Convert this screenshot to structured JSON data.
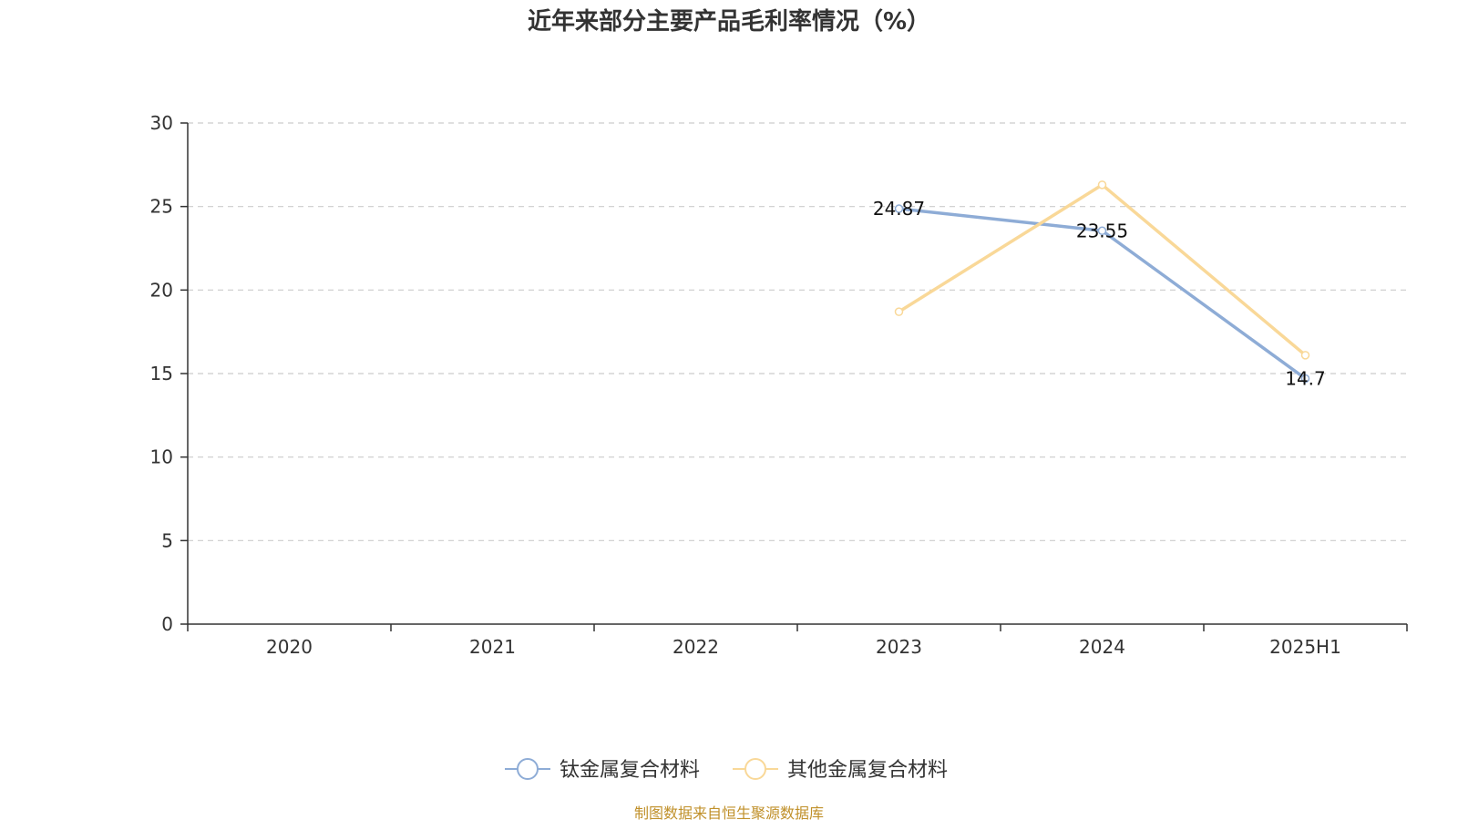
{
  "colors": {
    "series_0": "#8eacd6",
    "series_1": "#f9d898",
    "axis": "#333333",
    "grid": "#cccccc",
    "source": "#c0902a"
  },
  "chart_data": {
    "type": "line",
    "title": "近年来部分主要产品毛利率情况（%）",
    "categories": [
      "2020",
      "2021",
      "2022",
      "2023",
      "2024",
      "2025H1"
    ],
    "y_ticks": [
      "0",
      "5",
      "10",
      "15",
      "20",
      "25",
      "30"
    ],
    "ylim": [
      0,
      30
    ],
    "grid": true,
    "legend_position": "bottom",
    "series": [
      {
        "name": "钛金属复合材料",
        "values": [
          null,
          null,
          null,
          24.87,
          23.55,
          14.7
        ],
        "labels": [
          "",
          "",
          "",
          "24.87",
          "23.55",
          "14.7"
        ]
      },
      {
        "name": "其他金属复合材料",
        "values": [
          null,
          null,
          null,
          18.7,
          26.3,
          16.1
        ],
        "labels": [
          "",
          "",
          "",
          "",
          "",
          ""
        ]
      }
    ]
  },
  "footer": {
    "source_text": "制图数据来自恒生聚源数据库"
  }
}
